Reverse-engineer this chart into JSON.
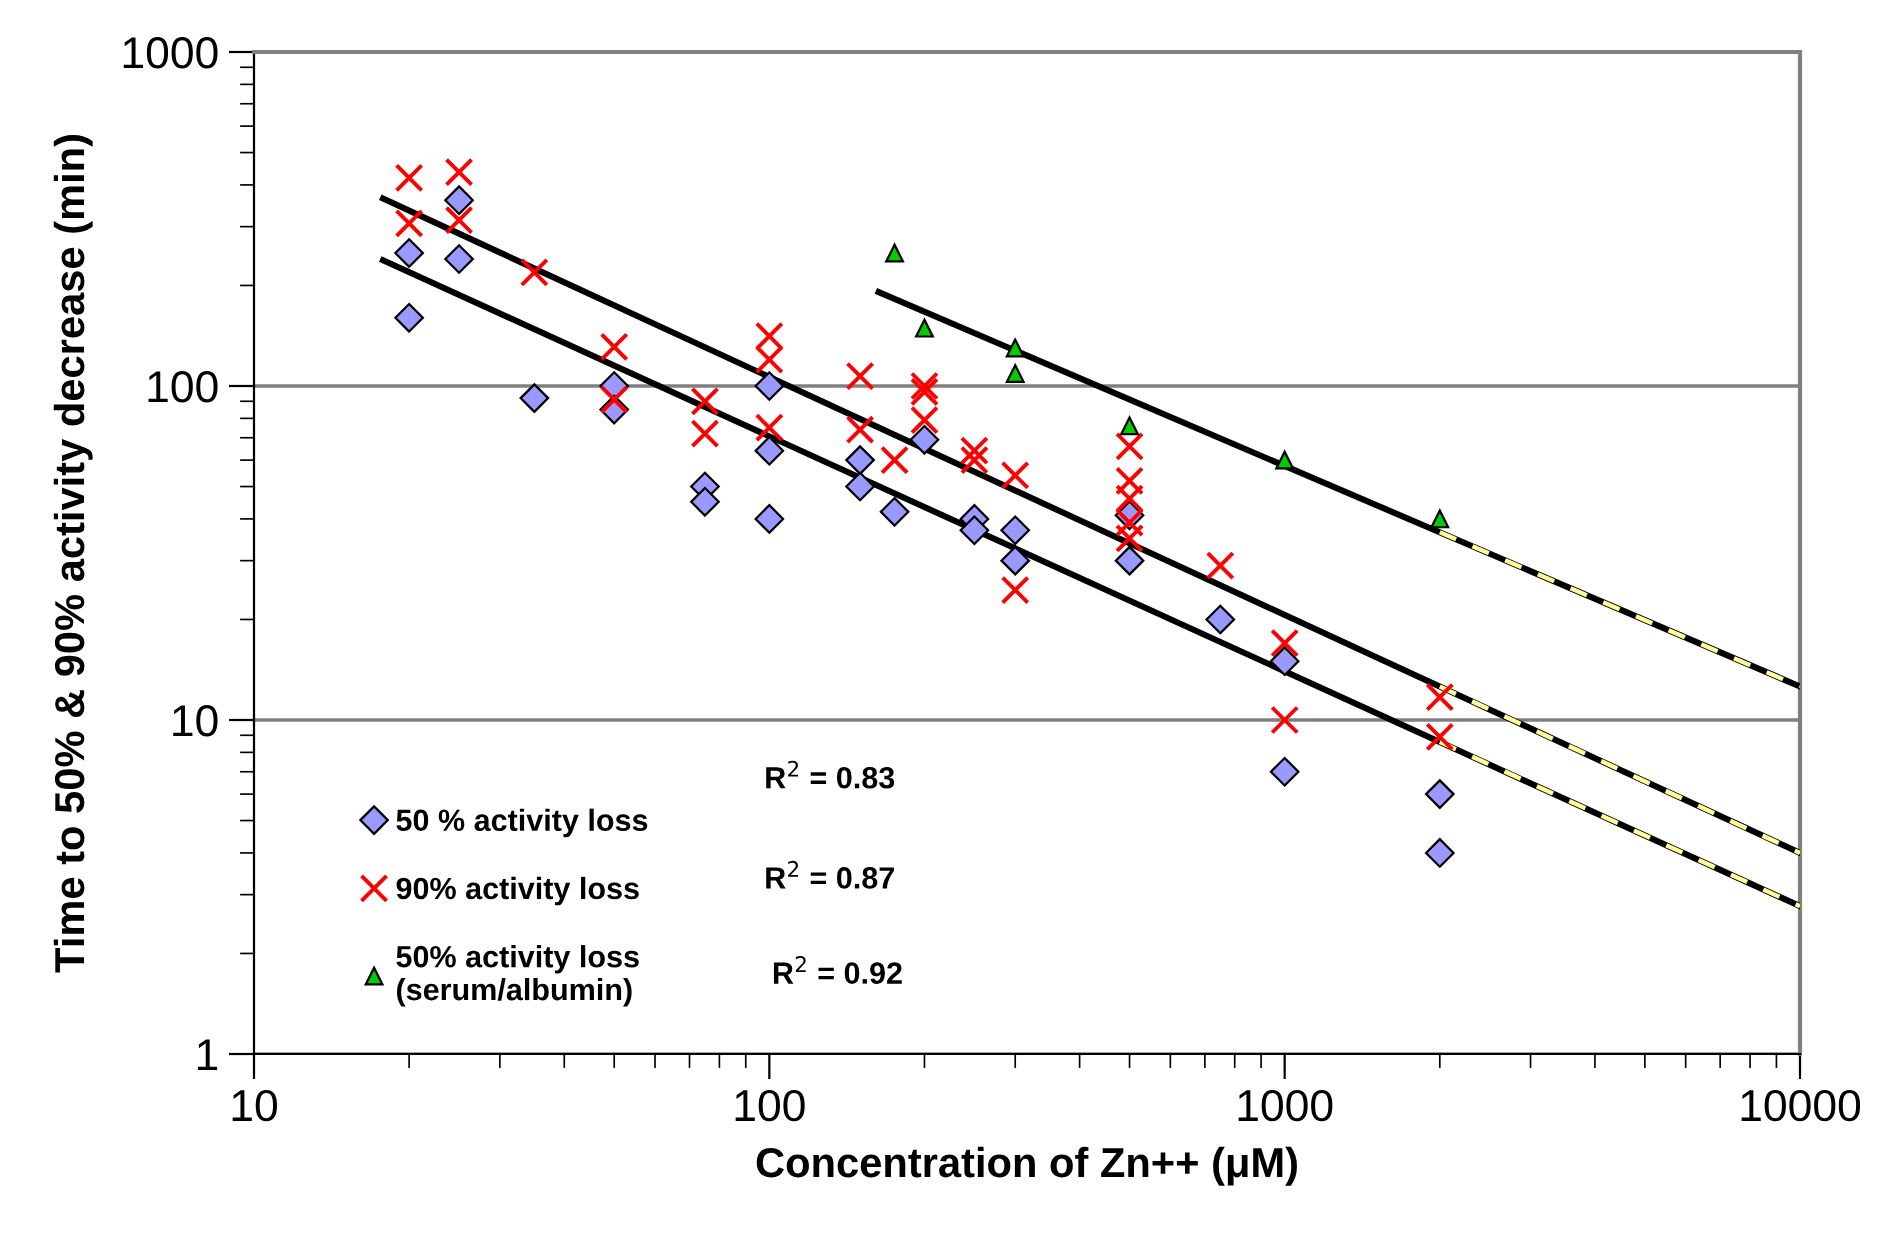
{
  "chart_data": {
    "type": "scatter",
    "xlabel": "Concentration of Zn++ (μM)",
    "ylabel": "Time to 50% & 90% activity decrease (min)",
    "log": "xy",
    "xlim": [
      10,
      10000
    ],
    "ylim": [
      1,
      1000
    ],
    "xticks": [
      10,
      100,
      1000,
      10000
    ],
    "yticks": [
      1,
      10,
      100,
      1000
    ],
    "grid": "y",
    "legend": "bottom left",
    "annotations": [
      "R$^{2}$ = 0.83",
      "R$^{2}$ = 0.87",
      "R$^{2}$ = 0.92"
    ],
    "series": [
      {
        "name": "50 % activity loss",
        "marker": "diamond",
        "color": "#9999ff",
        "x": [
          20,
          20,
          25,
          25,
          35,
          50,
          50,
          75,
          75,
          100,
          100,
          100,
          150,
          150,
          175,
          200,
          250,
          250,
          300,
          300,
          500,
          500,
          750,
          1000,
          1000,
          2000,
          2000
        ],
        "values": [
          250,
          160,
          360,
          240,
          92,
          100,
          85,
          50,
          45,
          100,
          64,
          40,
          60,
          50,
          42,
          69,
          40,
          37,
          37,
          30,
          41,
          30,
          20,
          15,
          7,
          6,
          4
        ]
      },
      {
        "name": "90% activity loss",
        "marker": "cross",
        "color": "#ff0000",
        "x": [
          20,
          20,
          25,
          25,
          35,
          50,
          50,
          75,
          75,
          100,
          100,
          100,
          150,
          150,
          175,
          200,
          200,
          200,
          250,
          250,
          300,
          300,
          500,
          500,
          500,
          500,
          500,
          750,
          1000,
          1000,
          2000,
          2000
        ],
        "values": [
          420,
          307,
          437,
          314,
          219,
          131,
          91,
          90,
          72,
          141,
          120,
          75,
          107,
          74,
          60,
          96,
          100,
          79,
          64,
          60,
          54,
          24.5,
          66,
          52,
          46,
          39,
          35,
          29,
          17,
          10,
          11.7,
          8.9
        ]
      },
      {
        "name": "50% activity loss\n(serum/albumin)",
        "marker": "triangle",
        "color": "#00cc00",
        "x": [
          175,
          200,
          300,
          300,
          500,
          1000,
          2000
        ],
        "values": [
          250,
          149,
          130,
          109,
          76,
          60,
          40
        ]
      },
      {
        "type": "line",
        "color": "#000000",
        "line_style": "solid",
        "x": [
          17.8,
          10000
        ],
        "values": [
          238,
          2.77
        ]
      },
      {
        "type": "line",
        "color": "#000000",
        "line_style": "solid",
        "x": [
          17.8,
          10000
        ],
        "values": [
          364,
          4.0
        ]
      },
      {
        "type": "line",
        "color": "#000000",
        "line_style": "solid",
        "x": [
          163,
          10000
        ],
        "values": [
          191,
          12.6
        ]
      },
      {
        "type": "line",
        "color": "#ffff99",
        "line_style": "dashed",
        "x": [
          2000,
          10000
        ],
        "values": [
          8.6,
          2.77
        ]
      },
      {
        "type": "line",
        "color": "#ffff99",
        "line_style": "dashed",
        "x": [
          2000,
          10000
        ],
        "values": [
          12.6,
          4.0
        ]
      },
      {
        "type": "line",
        "color": "#ffff99",
        "line_style": "dashed",
        "x": [
          2000,
          10000
        ],
        "values": [
          36.5,
          12.6
        ]
      }
    ]
  }
}
